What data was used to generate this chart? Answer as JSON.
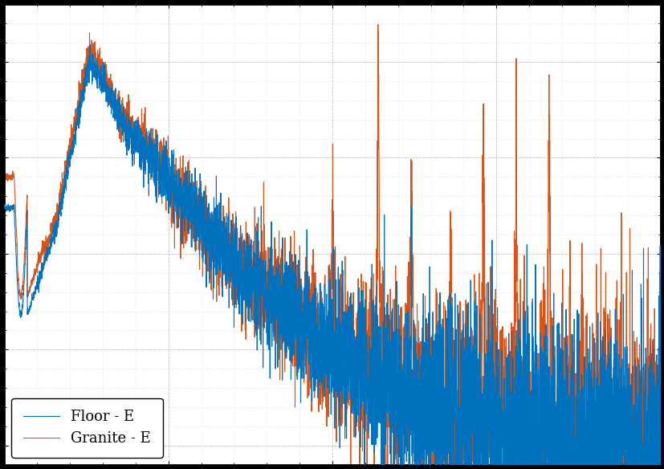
{
  "title": "",
  "xlabel": "",
  "ylabel": "",
  "line1_label": "Floor - E",
  "line2_label": "Granite - E",
  "line1_color": "#0072BD",
  "line2_color": "#D95319",
  "background_color": "#ffffff",
  "grid_color": "#aaaaaa",
  "figsize": [
    8.28,
    5.84
  ],
  "dpi": 100,
  "legend_loc": "lower left",
  "seed_floor": 42,
  "seed_granite": 77
}
